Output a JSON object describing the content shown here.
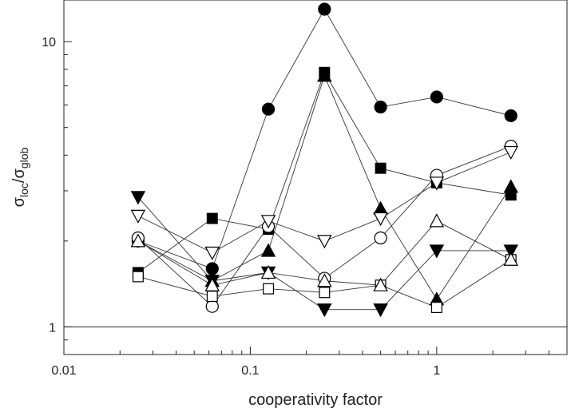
{
  "chart_data": {
    "type": "scatter",
    "xlabel": "cooperativity factor",
    "ylabel_main": "σ",
    "ylabel_sub1": "loc",
    "ylabel_mid": "/σ",
    "ylabel_sub2": "glob",
    "xscale": "log",
    "yscale": "log",
    "xlim": [
      0.01,
      5
    ],
    "ylim": [
      0.8,
      14
    ],
    "xticks": [
      {
        "value": 0.01,
        "label": "0.01"
      },
      {
        "value": 0.1,
        "label": "0.1"
      },
      {
        "value": 1,
        "label": "1"
      }
    ],
    "yticks": [
      {
        "value": 1,
        "label": "1"
      },
      {
        "value": 10,
        "label": "10"
      }
    ],
    "reference_line": 1,
    "grid": false,
    "series": [
      {
        "marker": "circle-filled",
        "x": [
          0.025,
          0.0625,
          0.125,
          0.25,
          0.5,
          1,
          2.5
        ],
        "y": [
          2.0,
          1.6,
          5.8,
          13.0,
          5.9,
          6.4,
          5.5
        ]
      },
      {
        "marker": "square-filled",
        "x": [
          0.025,
          0.0625,
          0.125,
          0.25,
          0.5,
          1,
          2.5
        ],
        "y": [
          1.55,
          2.4,
          2.2,
          7.8,
          3.6,
          3.2,
          2.9
        ]
      },
      {
        "marker": "triangle-up-filled",
        "x": [
          0.025,
          0.0625,
          0.125,
          0.25,
          0.5,
          1,
          2.5
        ],
        "y": [
          2.0,
          1.45,
          1.85,
          7.6,
          2.6,
          1.25,
          3.1
        ]
      },
      {
        "marker": "triangle-down-filled",
        "x": [
          0.025,
          0.0625,
          0.125,
          0.25,
          0.5,
          1,
          2.5
        ],
        "y": [
          2.85,
          1.45,
          1.55,
          1.15,
          1.15,
          1.85,
          1.85
        ]
      },
      {
        "marker": "circle-open",
        "x": [
          0.025,
          0.0625,
          0.125,
          0.25,
          0.5,
          1,
          2.5
        ],
        "y": [
          2.05,
          1.18,
          2.25,
          1.48,
          2.05,
          3.4,
          4.3
        ]
      },
      {
        "marker": "square-open",
        "x": [
          0.025,
          0.0625,
          0.125,
          0.25,
          0.5,
          1,
          2.5
        ],
        "y": [
          1.5,
          1.28,
          1.36,
          1.32,
          1.4,
          1.17,
          1.72
        ]
      },
      {
        "marker": "triangle-up-open",
        "x": [
          0.025,
          0.0625,
          0.125,
          0.25,
          0.5,
          1,
          2.5
        ],
        "y": [
          2.0,
          1.4,
          1.55,
          1.45,
          1.4,
          2.35,
          1.72
        ]
      },
      {
        "marker": "triangle-down-open",
        "x": [
          0.025,
          0.0625,
          0.125,
          0.25,
          0.5,
          1,
          2.5
        ],
        "y": [
          2.45,
          1.82,
          2.35,
          2.0,
          2.4,
          3.2,
          4.1
        ]
      }
    ]
  }
}
